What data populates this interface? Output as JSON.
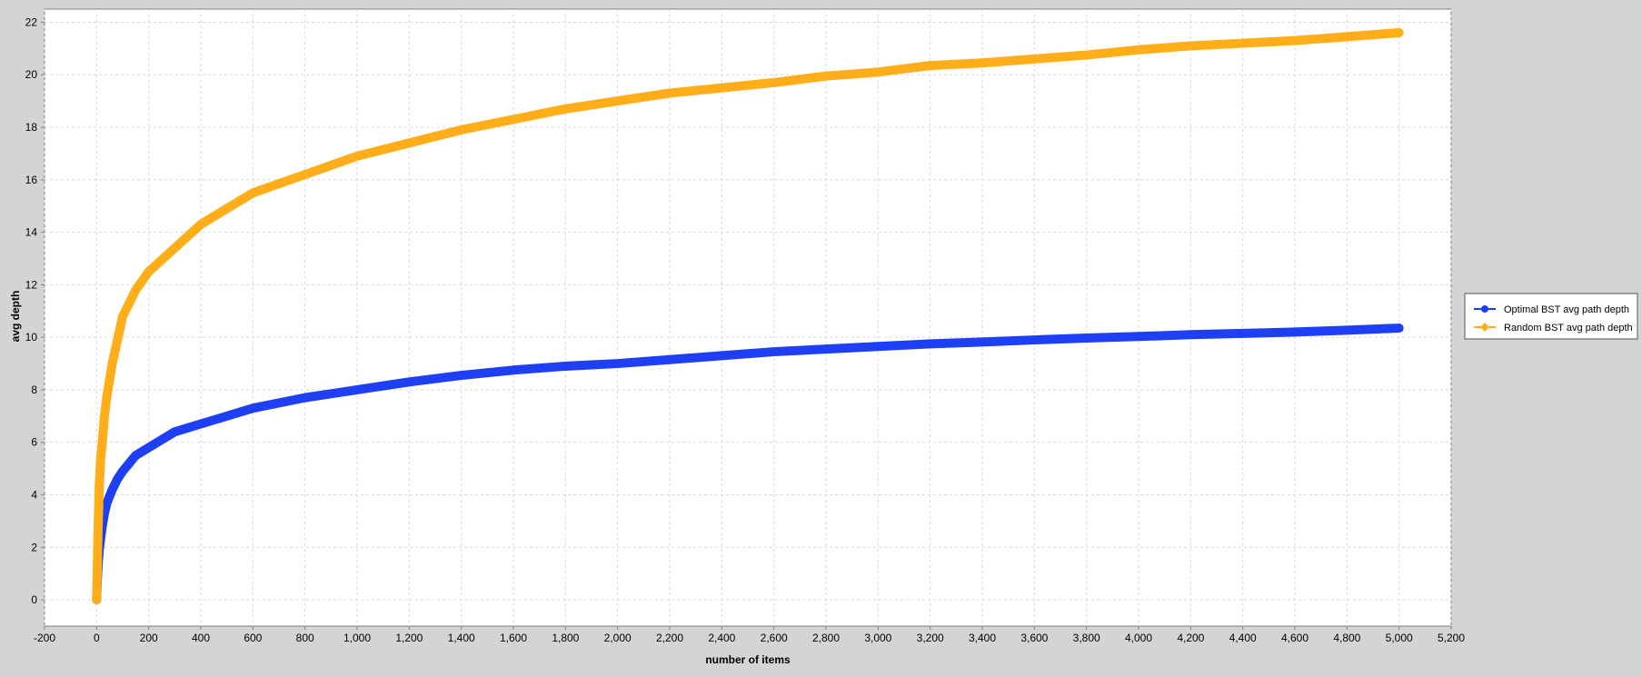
{
  "chart_data": {
    "type": "line",
    "title": "",
    "xlabel": "number of items",
    "ylabel": "avg depth",
    "xlim": [
      -200,
      5200
    ],
    "ylim": [
      -1,
      22.5
    ],
    "xticks": [
      -200,
      0,
      200,
      400,
      600,
      800,
      1000,
      1200,
      1400,
      1600,
      1800,
      2000,
      2200,
      2400,
      2600,
      2800,
      3000,
      3200,
      3400,
      3600,
      3800,
      4000,
      4200,
      4400,
      4600,
      4800,
      5000,
      5200
    ],
    "xtick_labels": [
      "-200",
      "0",
      "200",
      "400",
      "600",
      "800",
      "1,000",
      "1,200",
      "1,400",
      "1,600",
      "1,800",
      "2,000",
      "2,200",
      "2,400",
      "2,600",
      "2,800",
      "3,000",
      "3,200",
      "3,400",
      "3,600",
      "3,800",
      "4,000",
      "4,200",
      "4,400",
      "4,600",
      "4,800",
      "5,000",
      "5,200"
    ],
    "yticks": [
      0,
      2,
      4,
      6,
      8,
      10,
      12,
      14,
      16,
      18,
      20,
      22
    ],
    "ytick_labels": [
      "0",
      "2",
      "4",
      "6",
      "8",
      "10",
      "12",
      "14",
      "16",
      "18",
      "20",
      "22"
    ],
    "grid": true,
    "legend_position": "right",
    "series": [
      {
        "name": "Optimal BST avg path depth",
        "color": "#1f3ff5",
        "marker": "circle",
        "x": [
          0,
          2,
          4,
          6,
          8,
          10,
          15,
          20,
          30,
          40,
          60,
          80,
          100,
          150,
          200,
          300,
          400,
          500,
          600,
          800,
          1000,
          1200,
          1400,
          1600,
          1800,
          2000,
          2200,
          2400,
          2600,
          2800,
          3000,
          3200,
          3400,
          3600,
          3800,
          4000,
          4200,
          4400,
          4600,
          4800,
          5000
        ],
        "y": [
          0,
          0.6,
          1.0,
          1.4,
          1.6,
          1.9,
          2.3,
          2.7,
          3.3,
          3.7,
          4.2,
          4.6,
          4.9,
          5.5,
          5.8,
          6.4,
          6.7,
          7.0,
          7.3,
          7.7,
          8.0,
          8.3,
          8.55,
          8.75,
          8.9,
          9.0,
          9.15,
          9.3,
          9.45,
          9.55,
          9.65,
          9.75,
          9.82,
          9.9,
          9.97,
          10.03,
          10.1,
          10.15,
          10.2,
          10.27,
          10.35
        ]
      },
      {
        "name": "Random BST avg path depth",
        "color": "#ffae1a",
        "marker": "diamond",
        "x": [
          0,
          2,
          4,
          6,
          8,
          10,
          15,
          20,
          30,
          40,
          60,
          80,
          100,
          150,
          200,
          300,
          400,
          500,
          600,
          800,
          1000,
          1200,
          1400,
          1600,
          1800,
          2000,
          2200,
          2400,
          2600,
          2800,
          3000,
          3200,
          3400,
          3600,
          3800,
          4000,
          4200,
          4400,
          4600,
          4800,
          5000
        ],
        "y": [
          0,
          1.0,
          2.0,
          2.8,
          3.5,
          4.3,
          5.3,
          5.8,
          7.0,
          7.8,
          9.0,
          9.9,
          10.8,
          11.8,
          12.5,
          13.4,
          14.3,
          14.9,
          15.5,
          16.2,
          16.9,
          17.4,
          17.9,
          18.3,
          18.7,
          19.0,
          19.3,
          19.5,
          19.7,
          19.95,
          20.1,
          20.35,
          20.45,
          20.6,
          20.75,
          20.95,
          21.1,
          21.2,
          21.3,
          21.45,
          21.6
        ]
      }
    ]
  }
}
